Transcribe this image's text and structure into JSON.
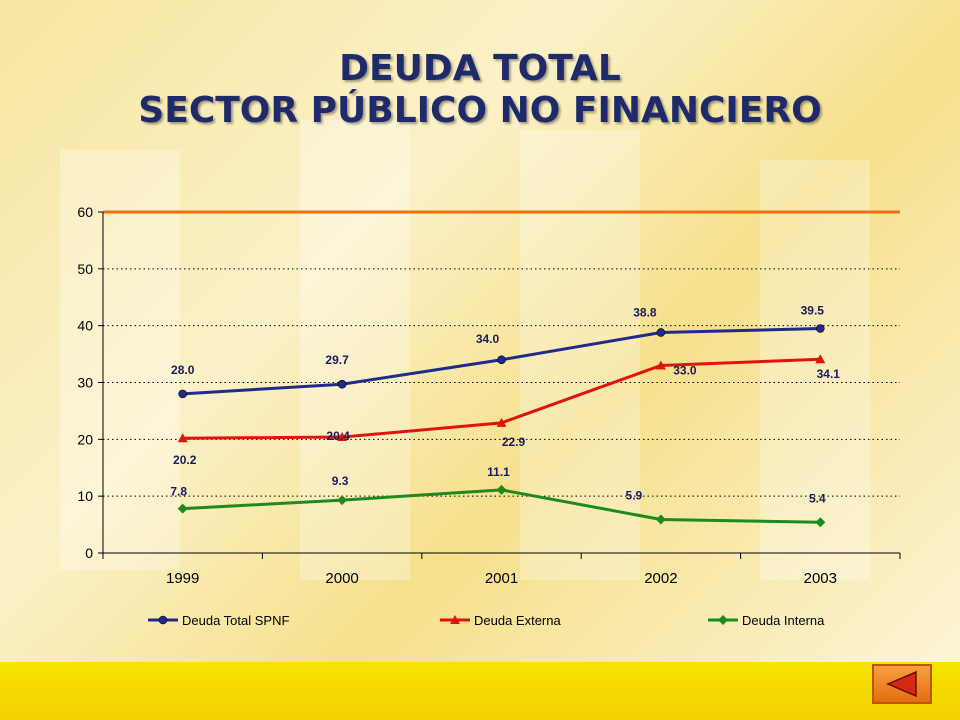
{
  "title": {
    "line1": "DEUDA TOTAL",
    "line2": "SECTOR PÚBLICO NO FINANCIERO"
  },
  "colors": {
    "total": "#1f2a8a",
    "externa": "#e0140a",
    "interna": "#1e8a1e",
    "ref_line": "#f07010"
  },
  "nav": {
    "back_icon": "triangle-left-icon"
  },
  "chart_data": {
    "type": "line",
    "title": "",
    "xlabel": "",
    "ylabel": "",
    "categories": [
      "1999",
      "2000",
      "2001",
      "2002",
      "2003"
    ],
    "ylim": [
      0,
      60
    ],
    "yticks": [
      "0",
      "10",
      "20",
      "30",
      "40",
      "50",
      "60"
    ],
    "grid": true,
    "legend_placement": "bottom",
    "series": [
      {
        "name": "Deuda Total SPNF",
        "values": [
          28.0,
          29.7,
          34.0,
          38.8,
          39.5
        ],
        "labels": [
          "28.0",
          "29.7",
          "34.0",
          "38.8",
          "39.5"
        ],
        "marker": "circle"
      },
      {
        "name": "Deuda Externa",
        "values": [
          20.2,
          20.4,
          22.9,
          33.0,
          34.1
        ],
        "labels": [
          "20.2",
          "20.4",
          "22.9",
          "33.0",
          "34.1"
        ],
        "marker": "triangle"
      },
      {
        "name": "Deuda Interna",
        "values": [
          7.8,
          9.3,
          11.1,
          5.9,
          5.4
        ],
        "labels": [
          "7.8",
          "9.3",
          "11.1",
          "5.9",
          "5.4"
        ],
        "marker": "diamond"
      }
    ]
  }
}
